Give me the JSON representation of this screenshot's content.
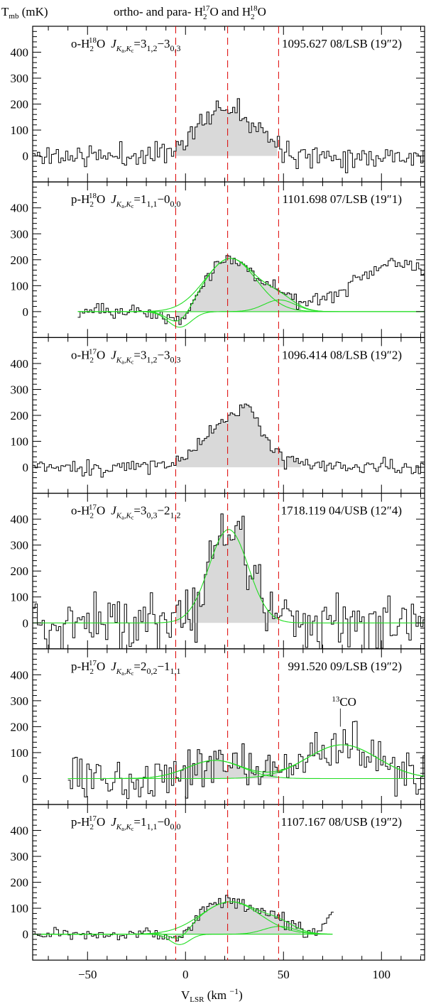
{
  "title": {
    "pre": "ortho- and para- H",
    "sub1": "2",
    "sup1": "17",
    "mid": "O and H",
    "sub2": "2",
    "sup2": "18",
    "post": "O"
  },
  "ylabel": {
    "main": "T",
    "sub": "mb",
    "unit": " (mK)"
  },
  "xlabel": {
    "main": "V",
    "sub": "LSR",
    "unit": " (km ",
    "sup": "−1",
    "close": ")"
  },
  "colors": {
    "spectrum": "#000000",
    "fill": "#d9d9d9",
    "fit": "#22dd22",
    "marker": "#dd0000"
  },
  "chart_data": {
    "type": "line",
    "xlim": [
      -78,
      122
    ],
    "ylim": [
      -100,
      500
    ],
    "xticks": [
      -50,
      0,
      50,
      100
    ],
    "yticks": [
      0,
      100,
      200,
      300,
      400
    ],
    "channel_width": 1.2,
    "velocity_markers": [
      -5,
      21.5,
      47.5
    ],
    "panels": [
      {
        "species": {
          "pre": "o-H",
          "sub": "2",
          "sup": "18",
          "post": "O"
        },
        "transition": {
          "u": "3",
          "usub": "1,2",
          "l": "3",
          "lsub": "0,3"
        },
        "info": "1095.627 08/LSB (19″2)",
        "v_range": [
          -78,
          122
        ],
        "noise_rms": 22,
        "seed": 11,
        "shade": [
          -5,
          48
        ],
        "components": [
          {
            "amp": 190,
            "v0": 22,
            "sigma": 15
          }
        ],
        "extra": [],
        "fit": false
      },
      {
        "species": {
          "pre": "p-H",
          "sub": "2",
          "sup": "18",
          "post": "O"
        },
        "transition": {
          "u": "1",
          "usub": "1,1",
          "l": "0",
          "lsub": "0,0"
        },
        "info": "1101.698 07/LSB (19″1)",
        "v_range": [
          -55,
          122
        ],
        "noise_rms": 14,
        "seed": 23,
        "shade": [
          -5,
          60
        ],
        "components": [
          {
            "amp": 205,
            "v0": 23,
            "sigma": 13
          },
          {
            "amp": 45,
            "v0": 48,
            "sigma": 8
          },
          {
            "amp": -60,
            "v0": -3,
            "sigma": 6
          }
        ],
        "extra": [
          {
            "amp": 190,
            "v0": 108,
            "sigma": 22
          }
        ],
        "fit": true,
        "fit_range": [
          -55,
          122
        ]
      },
      {
        "species": {
          "pre": "o-H",
          "sub": "2",
          "sup": "17",
          "post": "O"
        },
        "transition": {
          "u": "3",
          "usub": "1,2",
          "l": "3",
          "lsub": "0,3"
        },
        "info": "1096.414 08/LSB (19″2)",
        "v_range": [
          -78,
          122
        ],
        "noise_rms": 15,
        "seed": 37,
        "shade": [
          -5,
          60
        ],
        "components": [
          {
            "amp": 180,
            "v0": 24,
            "sigma": 15
          },
          {
            "amp": 80,
            "v0": 33,
            "sigma": 4
          }
        ],
        "extra": [],
        "fit": false
      },
      {
        "species": {
          "pre": "o-H",
          "sub": "2",
          "sup": "17",
          "post": "O"
        },
        "transition": {
          "u": "3",
          "usub": "0,3",
          "l": "2",
          "lsub": "1,2"
        },
        "info": "1718.119 04/USB (12″4)",
        "v_range": [
          -78,
          122
        ],
        "noise_rms": 60,
        "seed": 41,
        "shade": [
          -5,
          48
        ],
        "components": [
          {
            "amp": 360,
            "v0": 22,
            "sigma": 10
          }
        ],
        "extra": [],
        "fit": true,
        "fit_range": [
          -78,
          122
        ]
      },
      {
        "species": {
          "pre": "p-H",
          "sub": "2",
          "sup": "17",
          "post": "O"
        },
        "transition": {
          "u": "2",
          "usub": "0,2",
          "l": "1",
          "lsub": "1,1"
        },
        "info": "991.520 09/LSB (19″2)",
        "v_range": [
          -60,
          122
        ],
        "noise_rms": 42,
        "seed": 53,
        "shade": [
          -5,
          48
        ],
        "components": [
          {
            "amp": 70,
            "v0": 15,
            "sigma": 14
          },
          {
            "amp": 130,
            "v0": 80,
            "sigma": 18
          }
        ],
        "extra": [],
        "fit": true,
        "fit_range": [
          -60,
          122
        ],
        "annotation": {
          "sup": "13",
          "text": "CO",
          "v": 79,
          "t": 200
        }
      },
      {
        "species": {
          "pre": "p-H",
          "sub": "2",
          "sup": "17",
          "post": "O"
        },
        "transition": {
          "u": "1",
          "usub": "1,1",
          "l": "0",
          "lsub": "0,0"
        },
        "info": "1107.167 08/USB (19″2)",
        "v_range": [
          -78,
          75
        ],
        "noise_rms": 14,
        "seed": 67,
        "shade": [
          -5,
          60
        ],
        "components": [
          {
            "amp": 125,
            "v0": 23,
            "sigma": 15
          },
          {
            "amp": 30,
            "v0": 48,
            "sigma": 8
          },
          {
            "amp": -40,
            "v0": -3,
            "sigma": 5
          }
        ],
        "extra": [
          {
            "amp": 90,
            "v0": 75,
            "sigma": 3
          }
        ],
        "fit": true,
        "fit_range": [
          -78,
          75
        ]
      }
    ]
  }
}
